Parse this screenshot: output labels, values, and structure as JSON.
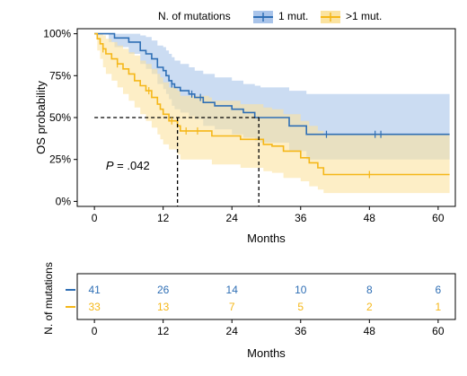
{
  "colors": {
    "one_mut": "#2f6fb5",
    "one_mut_band": "#a9c4ea",
    "gt_one_mut": "#f5b718",
    "gt_one_mut_band": "#fbe3a0",
    "axis": "#000000"
  },
  "chart_data": {
    "type": "line",
    "subtype": "kaplan-meier",
    "legend_title": "N. of mutations",
    "legend_position": "top",
    "xlabel": "Months",
    "ylabel": "OS probability",
    "xticks": [
      0,
      12,
      24,
      36,
      48,
      60
    ],
    "yticks": [
      0,
      25,
      50,
      75,
      100
    ],
    "ytick_labels": [
      "0%",
      "25%",
      "50%",
      "75%",
      "100%"
    ],
    "xlim": [
      -3,
      63
    ],
    "ylim": [
      -3,
      103
    ],
    "annotation": {
      "p_symbol": "P",
      "p_value": " = .042",
      "x": 2,
      "y": 19
    },
    "median_line": {
      "y": 50,
      "x_values": [
        14.5,
        28.7
      ]
    },
    "series": [
      {
        "name": "1 mut.",
        "color_key": "one_mut",
        "steps": [
          [
            0,
            100
          ],
          [
            2.5,
            100
          ],
          [
            3.5,
            97.5
          ],
          [
            6,
            95
          ],
          [
            8,
            90
          ],
          [
            9,
            88
          ],
          [
            10,
            85
          ],
          [
            11,
            80
          ],
          [
            12,
            78
          ],
          [
            12.5,
            75
          ],
          [
            13,
            72
          ],
          [
            13.5,
            70
          ],
          [
            14,
            68
          ],
          [
            15,
            66
          ],
          [
            16.5,
            64
          ],
          [
            17.5,
            62
          ],
          [
            19,
            59
          ],
          [
            21,
            57
          ],
          [
            24,
            55
          ],
          [
            26,
            53
          ],
          [
            28,
            50
          ],
          [
            29,
            50
          ],
          [
            34,
            45
          ],
          [
            37,
            40
          ],
          [
            62,
            40
          ]
        ],
        "lower": [
          [
            0,
            100
          ],
          [
            2.5,
            95
          ],
          [
            3.5,
            92
          ],
          [
            6,
            88
          ],
          [
            8,
            82
          ],
          [
            9,
            79
          ],
          [
            10,
            76
          ],
          [
            11,
            70
          ],
          [
            12,
            67
          ],
          [
            12.5,
            64
          ],
          [
            13,
            61
          ],
          [
            13.5,
            57
          ],
          [
            14,
            55
          ],
          [
            15,
            53
          ],
          [
            16.5,
            51
          ],
          [
            17.5,
            49
          ],
          [
            19,
            45
          ],
          [
            21,
            43
          ],
          [
            24,
            40
          ],
          [
            26,
            38
          ],
          [
            28,
            36
          ],
          [
            29,
            35
          ],
          [
            34,
            30
          ],
          [
            37,
            25
          ],
          [
            62,
            25
          ]
        ],
        "upper": [
          [
            0,
            100
          ],
          [
            2.5,
            100
          ],
          [
            3.5,
            100
          ],
          [
            6,
            100
          ],
          [
            8,
            99
          ],
          [
            9,
            98
          ],
          [
            10,
            96
          ],
          [
            11,
            93
          ],
          [
            12,
            92
          ],
          [
            12.5,
            90
          ],
          [
            13,
            88
          ],
          [
            13.5,
            86
          ],
          [
            14,
            84
          ],
          [
            15,
            82
          ],
          [
            16.5,
            80
          ],
          [
            17.5,
            78
          ],
          [
            19,
            76
          ],
          [
            21,
            74
          ],
          [
            24,
            72
          ],
          [
            26,
            70
          ],
          [
            28,
            69
          ],
          [
            29,
            68
          ],
          [
            34,
            66
          ],
          [
            37,
            64
          ],
          [
            62,
            64
          ]
        ],
        "censor_x": [
          13.5,
          17,
          18.5,
          40.5,
          49,
          50
        ],
        "at_risk": [
          41,
          26,
          14,
          10,
          8,
          6
        ]
      },
      {
        "name": ">1 mut.",
        "color_key": "gt_one_mut",
        "steps": [
          [
            0,
            100
          ],
          [
            0.5,
            97
          ],
          [
            1,
            94
          ],
          [
            1.5,
            91
          ],
          [
            2,
            88
          ],
          [
            3,
            85
          ],
          [
            4,
            82
          ],
          [
            5,
            79
          ],
          [
            6,
            76
          ],
          [
            7,
            72
          ],
          [
            8,
            69
          ],
          [
            9,
            66
          ],
          [
            10,
            62
          ],
          [
            11,
            58
          ],
          [
            11.5,
            55
          ],
          [
            12,
            52
          ],
          [
            13,
            48
          ],
          [
            14.5,
            45
          ],
          [
            15,
            42
          ],
          [
            20,
            42
          ],
          [
            20.5,
            39
          ],
          [
            24,
            39
          ],
          [
            25.5,
            37
          ],
          [
            29,
            37
          ],
          [
            29.5,
            34
          ],
          [
            31,
            33
          ],
          [
            33,
            30
          ],
          [
            36,
            26
          ],
          [
            37.5,
            23
          ],
          [
            39,
            20
          ],
          [
            40,
            16
          ],
          [
            62,
            16
          ]
        ],
        "lower": [
          [
            0,
            100
          ],
          [
            0.5,
            90
          ],
          [
            1,
            85
          ],
          [
            1.5,
            80
          ],
          [
            2,
            76
          ],
          [
            3,
            72
          ],
          [
            4,
            68
          ],
          [
            5,
            64
          ],
          [
            6,
            60
          ],
          [
            7,
            56
          ],
          [
            8,
            52
          ],
          [
            9,
            48
          ],
          [
            10,
            44
          ],
          [
            11,
            40
          ],
          [
            11.5,
            37
          ],
          [
            12,
            34
          ],
          [
            13,
            31
          ],
          [
            14.5,
            28
          ],
          [
            15,
            25
          ],
          [
            20,
            25
          ],
          [
            20.5,
            22
          ],
          [
            24,
            22
          ],
          [
            25.5,
            20
          ],
          [
            29,
            20
          ],
          [
            29.5,
            18
          ],
          [
            31,
            17
          ],
          [
            33,
            14
          ],
          [
            36,
            12
          ],
          [
            37.5,
            9
          ],
          [
            39,
            7
          ],
          [
            40,
            5
          ],
          [
            62,
            5
          ]
        ],
        "upper": [
          [
            0,
            100
          ],
          [
            0.5,
            100
          ],
          [
            1,
            100
          ],
          [
            1.5,
            99
          ],
          [
            2,
            97
          ],
          [
            3,
            95
          ],
          [
            4,
            93
          ],
          [
            5,
            91
          ],
          [
            6,
            89
          ],
          [
            7,
            87
          ],
          [
            8,
            84
          ],
          [
            9,
            82
          ],
          [
            10,
            79
          ],
          [
            11,
            76
          ],
          [
            11.5,
            74
          ],
          [
            12,
            71
          ],
          [
            13,
            68
          ],
          [
            14.5,
            66
          ],
          [
            15,
            63
          ],
          [
            20,
            62
          ],
          [
            20.5,
            60
          ],
          [
            24,
            60
          ],
          [
            25.5,
            58
          ],
          [
            29,
            58
          ],
          [
            29.5,
            56
          ],
          [
            31,
            55
          ],
          [
            33,
            52
          ],
          [
            36,
            48
          ],
          [
            37.5,
            45
          ],
          [
            39,
            42
          ],
          [
            40,
            40
          ],
          [
            62,
            40
          ]
        ],
        "censor_x": [
          1.5,
          4,
          9.5,
          13.5,
          16,
          18,
          48
        ],
        "at_risk": [
          33,
          13,
          7,
          5,
          2,
          1
        ]
      }
    ],
    "risk_table": {
      "title": "N. of mutations",
      "xlabel": "Months",
      "xticks": [
        0,
        12,
        24,
        36,
        48,
        60
      ]
    }
  }
}
